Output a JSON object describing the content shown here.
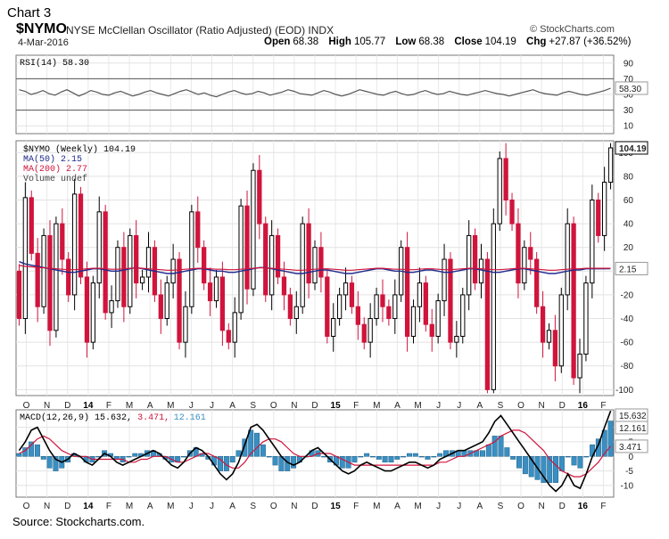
{
  "header": {
    "caption": "Chart 3",
    "symbol": "$NYMO",
    "description": "NYSE McClellan Oscillator (Ratio Adjusted) (EOD)  INDX",
    "watermark": "© StockCharts.com",
    "date": "4-Mar-2016",
    "open_label": "Open",
    "open": "68.38",
    "high_label": "High",
    "high": "105.77",
    "low_label": "Low",
    "low": "68.38",
    "close_label": "Close",
    "close": "104.19",
    "chg_label": "Chg",
    "chg": "+27.87 (+36.52%)"
  },
  "source": "Source: Stockcharts.com.",
  "colors": {
    "up_candle": "#000000",
    "down_candle": "#d0143c",
    "ma50": "#1e2a8c",
    "ma200": "#d0143c",
    "macd_line": "#000000",
    "signal_line": "#d0143c",
    "histogram": "#3a8fc2",
    "rsi_line": "#555555"
  },
  "chart_data": [
    {
      "type": "line",
      "panel": "rsi",
      "legend": "RSI(14) 58.30",
      "last_value_label": "58.30",
      "yticks": [
        10,
        30,
        50,
        70,
        90
      ],
      "ylim": [
        0,
        100
      ],
      "reference_lines": [
        30,
        70
      ],
      "values": [
        56,
        54,
        50,
        52,
        55,
        51,
        49,
        53,
        56,
        52,
        48,
        51,
        55,
        53,
        50,
        49,
        52,
        54,
        51,
        48,
        50,
        53,
        55,
        52,
        50,
        48,
        51,
        54,
        56,
        53,
        50,
        52,
        49,
        47,
        50,
        53,
        55,
        52,
        50,
        51,
        54,
        52,
        49,
        51,
        53,
        56,
        54,
        51,
        50,
        49,
        52,
        55,
        53,
        50,
        48,
        50,
        53,
        56,
        54,
        52,
        50,
        49,
        52,
        54,
        51,
        49,
        50,
        53,
        55,
        52,
        50,
        51,
        54,
        52,
        50,
        49,
        51,
        53,
        55,
        53,
        51,
        50,
        48,
        50,
        52,
        54,
        56,
        53,
        51,
        50,
        49,
        52,
        54,
        52,
        50,
        49,
        51,
        53,
        55,
        58
      ]
    },
    {
      "type": "candlestick",
      "panel": "price",
      "legend": [
        {
          "text": "$NYMO (Weekly) 104.19",
          "color": "#000000"
        },
        {
          "text": "MA(50) 2.15",
          "color": "#1e2a8c"
        },
        {
          "text": "MA(200) 2.77",
          "color": "#d0143c"
        },
        {
          "text": "Volume undef",
          "color": "#444444"
        }
      ],
      "last_value_label": "104.19",
      "ma_value_label": "2.15",
      "yticks": [
        -100,
        -80,
        -60,
        -40,
        -20,
        0,
        20,
        40,
        60,
        80,
        100
      ],
      "ylim": [
        -105,
        110
      ],
      "x_month_labels": [
        "O",
        "N",
        "D",
        "14",
        "F",
        "M",
        "A",
        "M",
        "J",
        "J",
        "A",
        "S",
        "O",
        "N",
        "D",
        "15",
        "F",
        "M",
        "A",
        "M",
        "J",
        "J",
        "A",
        "S",
        "O",
        "N",
        "D",
        "16",
        "F"
      ],
      "closes": [
        -40,
        62,
        15,
        -30,
        30,
        -50,
        40,
        10,
        -20,
        65,
        -5,
        -60,
        -10,
        50,
        -35,
        -25,
        20,
        -30,
        30,
        -10,
        -5,
        20,
        -20,
        -40,
        -10,
        10,
        -60,
        -30,
        50,
        20,
        -10,
        -25,
        -5,
        -50,
        -60,
        -35,
        55,
        -15,
        85,
        40,
        -20,
        30,
        -5,
        -20,
        -40,
        -30,
        40,
        -10,
        20,
        -5,
        -55,
        -40,
        -20,
        -10,
        -30,
        -45,
        -60,
        -40,
        -20,
        -30,
        -40,
        -20,
        20,
        -55,
        -30,
        -10,
        -45,
        -55,
        -25,
        10,
        -60,
        -55,
        -20,
        30,
        -10,
        10,
        -100,
        40,
        95,
        60,
        40,
        -10,
        20,
        10,
        -30,
        -60,
        -50,
        -80,
        -20,
        40,
        -90,
        -70,
        -10,
        60,
        30,
        75,
        104
      ],
      "ma50": [
        8,
        6,
        5,
        4,
        3,
        2,
        1,
        0,
        -1,
        -1,
        0,
        1,
        2,
        2,
        1,
        0,
        0,
        1,
        2,
        3,
        2,
        1,
        0,
        -1,
        -2,
        -2,
        -1,
        0,
        1,
        2,
        2,
        1,
        0,
        0,
        -1,
        -1,
        0,
        1,
        2,
        3,
        3,
        2,
        1,
        0,
        -1,
        -2,
        -2,
        -1,
        0,
        1,
        1,
        0,
        -1,
        -2,
        -2,
        -1,
        0,
        1,
        2,
        2,
        1,
        0,
        0,
        -1,
        -1,
        0,
        1,
        1,
        0,
        -1,
        -1,
        0,
        1,
        2,
        2,
        1,
        0,
        -1,
        -1,
        0,
        1,
        2,
        2,
        1,
        0,
        -1,
        -2,
        -2,
        -1,
        0,
        1,
        1,
        2,
        2,
        2,
        2,
        2.15
      ]
    },
    {
      "type": "line",
      "panel": "macd",
      "legend": [
        {
          "text": "MACD(12,26,9) 15.632,",
          "color": "#000000"
        },
        {
          "text": "3.471,",
          "color": "#d0143c"
        },
        {
          "text": "12.161",
          "color": "#3a8fc2"
        }
      ],
      "value_labels": {
        "macd": "15.632",
        "histogram": "12.161",
        "signal": "3.471"
      },
      "yticks": [
        -10,
        -5,
        0,
        5,
        10
      ],
      "ylim": [
        -14,
        16
      ],
      "macd": [
        2,
        5,
        9,
        10,
        6,
        2,
        -1,
        -2,
        -1,
        1,
        0,
        -2,
        -3,
        -1,
        1,
        0,
        -2,
        -3,
        -2,
        -1,
        0,
        1,
        2,
        1,
        -1,
        -3,
        -4,
        -2,
        1,
        3,
        2,
        0,
        -3,
        -6,
        -8,
        -6,
        -2,
        4,
        10,
        11,
        9,
        6,
        3,
        0,
        -2,
        -3,
        -2,
        0,
        2,
        3,
        1,
        -1,
        -3,
        -5,
        -6,
        -5,
        -3,
        -2,
        -3,
        -4,
        -5,
        -5,
        -4,
        -3,
        -2,
        -2,
        -3,
        -4,
        -3,
        -1,
        0,
        1,
        2,
        2,
        3,
        4,
        5,
        8,
        12,
        14,
        11,
        8,
        5,
        2,
        -1,
        -4,
        -7,
        -10,
        -12,
        -10,
        -6,
        -10,
        -11,
        -6,
        0,
        4,
        10,
        15.632
      ],
      "signal": [
        1,
        2,
        4,
        6,
        7,
        6,
        4,
        2,
        1,
        0,
        0,
        0,
        -1,
        -1,
        -1,
        -1,
        -1,
        -1,
        -2,
        -2,
        -1,
        -1,
        0,
        0,
        0,
        -1,
        -2,
        -2,
        -1,
        0,
        1,
        1,
        0,
        -1,
        -3,
        -4,
        -4,
        -2,
        1,
        3,
        5,
        6,
        6,
        5,
        3,
        1,
        0,
        0,
        0,
        1,
        1,
        1,
        0,
        -1,
        -2,
        -3,
        -3,
        -3,
        -3,
        -3,
        -3,
        -3,
        -3,
        -3,
        -3,
        -3,
        -3,
        -3,
        -3,
        -2,
        -2,
        -1,
        0,
        0,
        1,
        2,
        3,
        4,
        5,
        7,
        8,
        9,
        9,
        8,
        6,
        4,
        2,
        -1,
        -3,
        -5,
        -6,
        -7,
        -7,
        -6,
        -4,
        -2,
        1,
        3.471
      ]
    }
  ]
}
